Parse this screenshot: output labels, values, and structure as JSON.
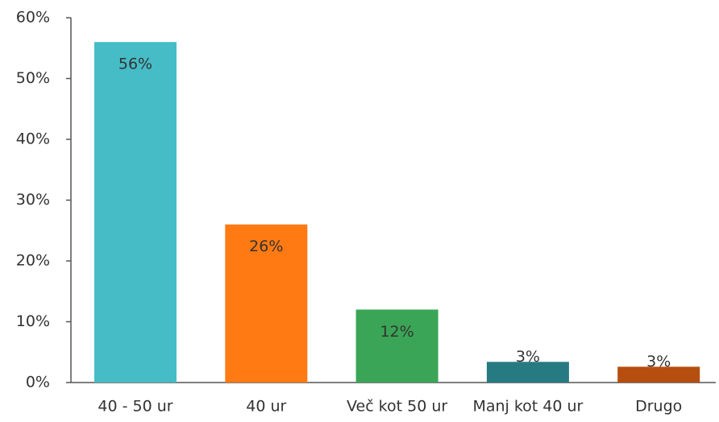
{
  "chart_data": {
    "type": "bar",
    "categories": [
      "40 - 50 ur",
      "40 ur",
      "Več kot 50 ur",
      "Manj kot 40 ur",
      "Drugo"
    ],
    "values": [
      56,
      26,
      12,
      3.4,
      2.6
    ],
    "value_labels": [
      "56%",
      "26%",
      "12%",
      "3%",
      "3%"
    ],
    "colors": [
      "#45bcc6",
      "#ff7a12",
      "#3aa556",
      "#267a82",
      "#b64e10"
    ],
    "ylim": [
      0,
      60
    ],
    "yticks": [
      {
        "value": 0,
        "label": "0%"
      },
      {
        "value": 10,
        "label": "10%"
      },
      {
        "value": 20,
        "label": "20%"
      },
      {
        "value": 30,
        "label": "30%"
      },
      {
        "value": 40,
        "label": "40%"
      },
      {
        "value": 50,
        "label": "50%"
      },
      {
        "value": 60,
        "label": "60%"
      }
    ],
    "grid": false
  }
}
